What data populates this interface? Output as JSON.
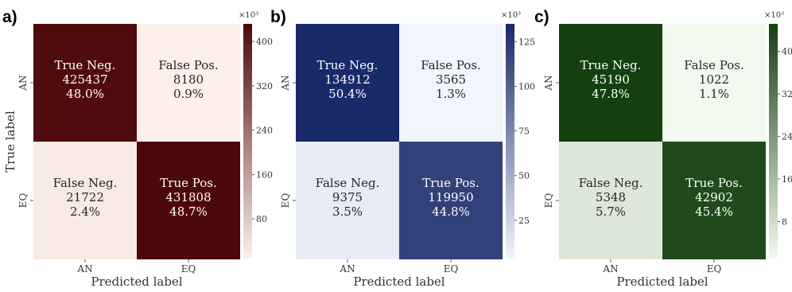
{
  "chart_data": [
    {
      "type": "heatmap",
      "panel": "a)",
      "xlabel": "Predicted label",
      "ylabel": "True label",
      "x_categories": [
        "AN",
        "EQ"
      ],
      "y_categories": [
        "AN",
        "EQ"
      ],
      "cells": [
        {
          "row": 0,
          "col": 0,
          "label": "True Neg.",
          "count": "425437",
          "percent": "48.0%",
          "value": 425437
        },
        {
          "row": 0,
          "col": 1,
          "label": "False Pos.",
          "count": "8180",
          "percent": "0.9%",
          "value": 8180
        },
        {
          "row": 1,
          "col": 0,
          "label": "False Neg.",
          "count": "21722",
          "percent": "2.4%",
          "value": 21722
        },
        {
          "row": 1,
          "col": 1,
          "label": "True Pos.",
          "count": "431808",
          "percent": "48.7%",
          "value": 431808
        }
      ],
      "colorbar": {
        "multiplier": "×10³",
        "ticks": [
          "80",
          "160",
          "240",
          "320",
          "400"
        ],
        "tick_values": [
          80000,
          160000,
          240000,
          320000,
          400000
        ],
        "range": [
          8180,
          431808
        ]
      },
      "colormap": "Reds",
      "colors": {
        "low": "#fdf0ea",
        "high": "#4d0909"
      }
    },
    {
      "type": "heatmap",
      "panel": "b)",
      "xlabel": "Predicted label",
      "ylabel": "",
      "x_categories": [
        "AN",
        "EQ"
      ],
      "y_categories": [
        "AN",
        "EQ"
      ],
      "cells": [
        {
          "row": 0,
          "col": 0,
          "label": "True Neg.",
          "count": "134912",
          "percent": "50.4%",
          "value": 134912
        },
        {
          "row": 0,
          "col": 1,
          "label": "False Pos.",
          "count": "3565",
          "percent": "1.3%",
          "value": 3565
        },
        {
          "row": 1,
          "col": 0,
          "label": "False Neg.",
          "count": "9375",
          "percent": "3.5%",
          "value": 9375
        },
        {
          "row": 1,
          "col": 1,
          "label": "True Pos.",
          "count": "119950",
          "percent": "44.8%",
          "value": 119950
        }
      ],
      "colorbar": {
        "multiplier": "×10³",
        "ticks": [
          "25",
          "50",
          "75",
          "100",
          "125"
        ],
        "tick_values": [
          25000,
          50000,
          75000,
          100000,
          125000
        ],
        "range": [
          3565,
          134912
        ]
      },
      "colormap": "Blues",
      "colors": {
        "low": "#f1f5fd",
        "high": "#182a68"
      }
    },
    {
      "type": "heatmap",
      "panel": "c)",
      "xlabel": "Predicted label",
      "ylabel": "",
      "x_categories": [
        "AN",
        "EQ"
      ],
      "y_categories": [
        "AN",
        "EQ"
      ],
      "cells": [
        {
          "row": 0,
          "col": 0,
          "label": "True Neg.",
          "count": "45190",
          "percent": "47.8%",
          "value": 45190
        },
        {
          "row": 0,
          "col": 1,
          "label": "False Pos.",
          "count": "1022",
          "percent": "1.1%",
          "value": 1022
        },
        {
          "row": 1,
          "col": 0,
          "label": "False Neg.",
          "count": "5348",
          "percent": "5.7%",
          "value": 5348
        },
        {
          "row": 1,
          "col": 1,
          "label": "True Pos.",
          "count": "42902",
          "percent": "45.4%",
          "value": 42902
        }
      ],
      "colorbar": {
        "multiplier": "×10³",
        "ticks": [
          "8",
          "16",
          "24",
          "32",
          "40"
        ],
        "tick_values": [
          8000,
          16000,
          24000,
          32000,
          40000
        ],
        "range": [
          1022,
          45190
        ]
      },
      "colormap": "Greens",
      "colors": {
        "low": "#f2f9ee",
        "high": "#14400f"
      }
    }
  ]
}
